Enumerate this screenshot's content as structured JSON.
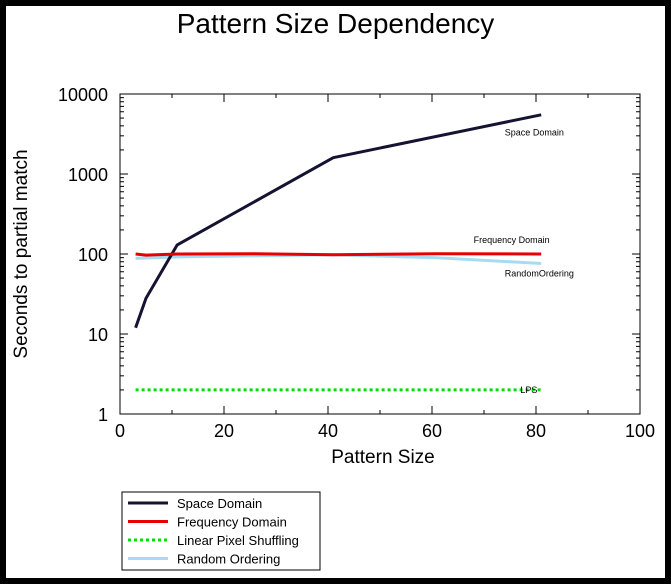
{
  "chart_data": {
    "type": "line",
    "title": "Pattern Size Dependency",
    "xlabel": "Pattern Size",
    "ylabel": "Seconds to partial match",
    "xlim": [
      0,
      100
    ],
    "ylim": [
      1,
      10000
    ],
    "yscale": "log",
    "xticks": [
      0,
      20,
      40,
      60,
      80,
      100
    ],
    "yticks": [
      1,
      10,
      100,
      1000,
      10000
    ],
    "xtick_labels": [
      "0",
      "20",
      "40",
      "60",
      "80",
      "100"
    ],
    "ytick_labels": [
      "1",
      "10",
      "100",
      "1000",
      "10000"
    ],
    "grid": false,
    "legend_position": "bottom-left",
    "series": [
      {
        "name": "Space Domain",
        "color": "#141432",
        "style": "solid",
        "x": [
          3,
          5,
          11,
          41,
          81
        ],
        "y": [
          12,
          28,
          130,
          1600,
          5500
        ],
        "annotation": "Space Domain",
        "annotation_at": [
          74,
          3300
        ]
      },
      {
        "name": "Frequency Domain",
        "color": "#e60000",
        "style": "solid",
        "x": [
          3,
          5,
          11,
          26,
          41,
          61,
          81
        ],
        "y": [
          100,
          97,
          100,
          101,
          98,
          101,
          100
        ],
        "annotation": "Frequency Domain",
        "annotation_at": [
          68,
          150
        ]
      },
      {
        "name": "Linear Pixel Shuffling",
        "color": "#00dd00",
        "style": "dotted",
        "x": [
          3,
          81
        ],
        "y": [
          2,
          2
        ],
        "annotation": "LPS",
        "annotation_at": [
          77,
          2
        ]
      },
      {
        "name": "Random Ordering",
        "color": "#a6dcf2",
        "style": "solid",
        "x": [
          3,
          11,
          41,
          61,
          81
        ],
        "y": [
          88,
          92,
          98,
          90,
          76
        ],
        "annotation": "RandomOrdering",
        "annotation_at": [
          74,
          57
        ]
      }
    ]
  }
}
